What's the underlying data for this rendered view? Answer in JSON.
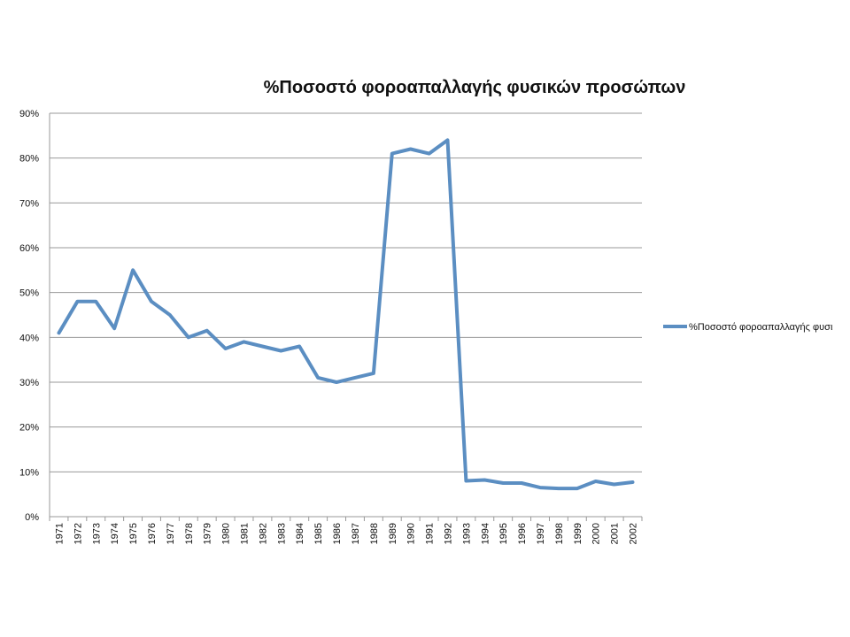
{
  "chart_data": {
    "type": "line",
    "title": "%Ποσοστό φοροαπαλλαγής φυσικών προσώπων",
    "xlabel": "",
    "ylabel": "",
    "ylim": [
      0,
      90
    ],
    "y_ticks": [
      "0%",
      "10%",
      "20%",
      "30%",
      "40%",
      "50%",
      "60%",
      "70%",
      "80%",
      "90%"
    ],
    "grid": true,
    "legend_position": "right",
    "categories": [
      "1971",
      "1972",
      "1973",
      "1974",
      "1975",
      "1976",
      "1977",
      "1978",
      "1979",
      "1980",
      "1981",
      "1982",
      "1983",
      "1984",
      "1985",
      "1986",
      "1987",
      "1988",
      "1989",
      "1990",
      "1991",
      "1992",
      "1993",
      "1994",
      "1995",
      "1996",
      "1997",
      "1998",
      "1999",
      "2000",
      "2001",
      "2002"
    ],
    "series": [
      {
        "name": "%Ποσοστό φοροαπαλλαγής φυσι",
        "color": "#5b8ec2",
        "values": [
          41,
          48,
          48,
          42,
          55,
          48,
          45,
          40,
          41.5,
          37.5,
          39,
          38,
          37,
          38,
          31,
          30,
          31,
          32,
          81,
          82,
          81,
          84,
          8,
          8.2,
          7.5,
          7.5,
          6.5,
          6.3,
          6.3,
          7.9,
          7.2,
          7.7
        ]
      }
    ]
  }
}
